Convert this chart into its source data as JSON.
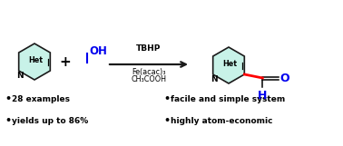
{
  "bg_color": "#ffffff",
  "ring_fill": "#c8f2e8",
  "ring_stroke": "#1a1a1a",
  "arrow_color": "#1a1a1a",
  "red_bond": "#ff0000",
  "blue_color": "#0000ee",
  "black": "#000000",
  "bullet_texts": [
    "28 examples",
    "yields up to 86%",
    "facile and simple system",
    "highly atom-economic"
  ],
  "reagents_line1": "TBHP",
  "reagents_line2": "Fe(acac)₃",
  "reagents_line3": "CH₃COOH",
  "plus_sign": "+",
  "het_label": "Het",
  "n_label": "N",
  "oh_label": "OH",
  "o_label": "O",
  "h_label": "H",
  "figw": 3.78,
  "figh": 1.61,
  "dpi": 100
}
